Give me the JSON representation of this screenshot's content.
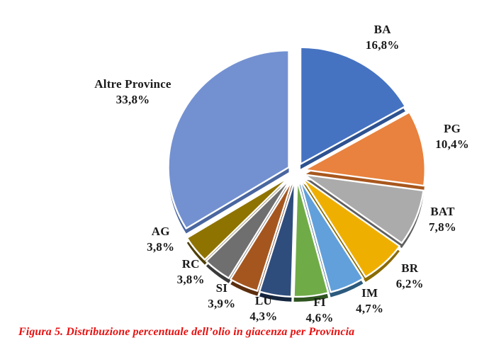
{
  "figure": {
    "caption": "Figura 5. Distribuzione percentuale dell’olio in giacenza per Provincia",
    "caption_color": "#e81010",
    "background_color": "#ffffff",
    "label_color": "#1a1a1a"
  },
  "chart_data": {
    "type": "pie",
    "title": "",
    "value_unit": "%",
    "decimal_separator": ",",
    "start_angle_deg": 0,
    "direction": "clockwise",
    "exploded": true,
    "legend_position": "none",
    "labels_outside": true,
    "slices": [
      {
        "label": "BA",
        "value": 16.8,
        "display": "16,8%",
        "color": "#4673c1",
        "side_color": "#2e5290"
      },
      {
        "label": "PG",
        "value": 10.4,
        "display": "10,4%",
        "color": "#e8823e",
        "side_color": "#a8571e"
      },
      {
        "label": "BAT",
        "value": 7.8,
        "display": "7,8%",
        "color": "#ababab",
        "side_color": "#5f5f5f"
      },
      {
        "label": "BR",
        "value": 6.2,
        "display": "6,2%",
        "color": "#efaf00",
        "side_color": "#8a6a00"
      },
      {
        "label": "IM",
        "value": 4.7,
        "display": "4,7%",
        "color": "#61a0db",
        "side_color": "#2c5a7e"
      },
      {
        "label": "FI",
        "value": 4.6,
        "display": "4,6%",
        "color": "#6fac47",
        "side_color": "#2f5420"
      },
      {
        "label": "LU",
        "value": 4.3,
        "display": "4,3%",
        "color": "#2f4d7c",
        "side_color": "#16263f"
      },
      {
        "label": "SI",
        "value": 3.9,
        "display": "3,9%",
        "color": "#a5561f",
        "side_color": "#5c2e0e"
      },
      {
        "label": "RC",
        "value": 3.8,
        "display": "3,8%",
        "color": "#6f6f6f",
        "side_color": "#3a3a3a"
      },
      {
        "label": "AG",
        "value": 3.8,
        "display": "3,8%",
        "color": "#8f7300",
        "side_color": "#4e3e00"
      },
      {
        "label": "Altre Province",
        "value": 33.8,
        "display": "33,8%",
        "color": "#7391d1",
        "side_color": "#4a66a0"
      }
    ]
  }
}
